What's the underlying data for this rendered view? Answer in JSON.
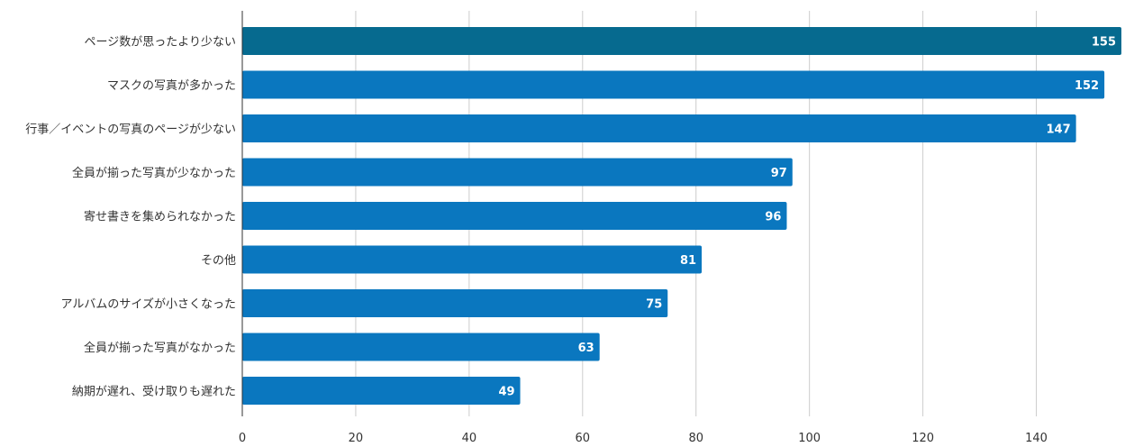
{
  "chart_data": {
    "type": "bar",
    "orientation": "horizontal",
    "title": "",
    "xlabel": "",
    "ylabel": "",
    "categories": [
      "ページ数が思ったより少ない",
      "マスクの写真が多かった",
      "行事／イベントの写真のページが少ない",
      "全員が揃った写真が少なかった",
      "寄せ書きを集められなかった",
      "その他",
      "アルバムのサイズが小さくなった",
      "全員が揃った写真がなかった",
      "納期が遅れ、受け取りも遅れた"
    ],
    "values": [
      155,
      152,
      147,
      97,
      96,
      81,
      75,
      63,
      49
    ],
    "xlim": [
      0,
      155
    ],
    "xticks": [
      0,
      20,
      40,
      60,
      80,
      100,
      120,
      140
    ],
    "grid": true,
    "legend": "none",
    "colors": {
      "bar": "#0a77bf",
      "highlight": "#066a8f",
      "grid": "#cccccc",
      "axis": "#333333"
    },
    "highlight_index": 0
  }
}
